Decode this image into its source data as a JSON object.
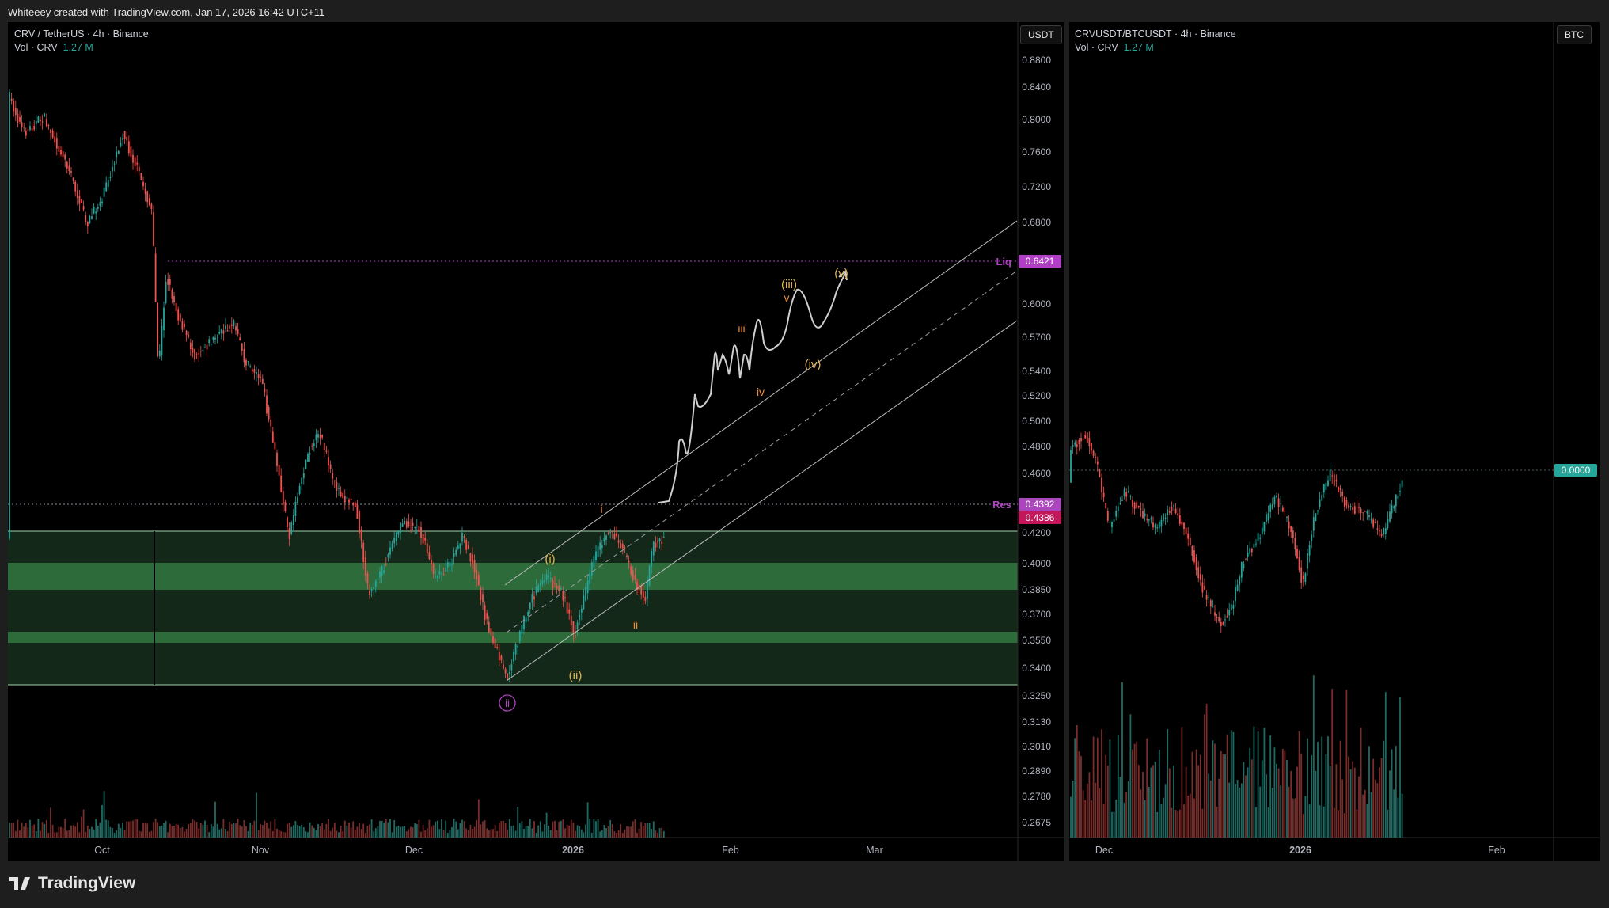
{
  "header": {
    "attribution": "Whiteeey created with TradingView.com, Jan 17, 2026 16:42 UTC+11"
  },
  "pane_main": {
    "symbol_line": "CRV / TetherUS · 4h · Binance",
    "vol_label": "Vol · CRV",
    "vol_value": "1.27 M",
    "unit_button": "USDT",
    "price_axis": [
      "0.8800",
      "0.8400",
      "0.8000",
      "0.7600",
      "0.7200",
      "0.6800",
      "0.6000",
      "0.5700",
      "0.5400",
      "0.5200",
      "0.5000",
      "0.4800",
      "0.4600",
      "0.4200",
      "0.4000",
      "0.3850",
      "0.3700",
      "0.3550",
      "0.3400",
      "0.3250",
      "0.3130",
      "0.3010",
      "0.2890",
      "0.2780",
      "0.2675"
    ],
    "time_axis": [
      "Oct",
      "Nov",
      "Dec",
      "2026",
      "Feb",
      "Mar"
    ],
    "liq": {
      "label": "Liq",
      "price": "0.6421",
      "color": "#b13fc6"
    },
    "res": {
      "label": "Res",
      "price": "0.4392",
      "color": "#ab47bc"
    },
    "last_price": "0.4386",
    "wave_labels": [
      "(iii)",
      "(v)",
      "v",
      "iii",
      "(iv)",
      "iv",
      "i",
      "(i)",
      "ii",
      "(ii)",
      "ii"
    ]
  },
  "pane_ratio": {
    "symbol_line": "CRVUSDT/BTCUSDT · 4h · Binance",
    "vol_label": "Vol · CRV",
    "vol_value": "1.27 M",
    "unit_button": "BTC",
    "last_value": "0.0000",
    "time_axis": [
      "Dec",
      "2026",
      "Feb"
    ]
  },
  "footer": {
    "brand": "TradingView"
  },
  "colors": {
    "up": "#26a69a",
    "down": "#ef5350",
    "zone": "#2e6b3a",
    "zone_dark": "#14281a",
    "path": "#cfcfcf"
  }
}
